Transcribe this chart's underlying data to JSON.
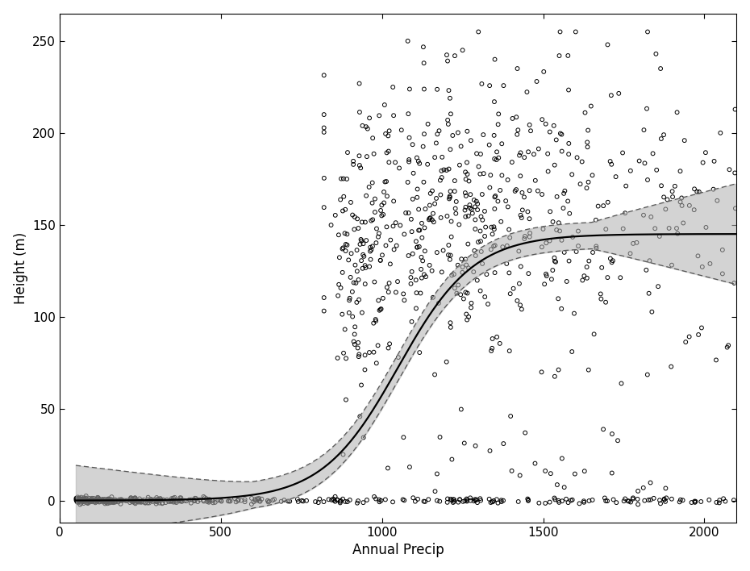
{
  "title": "",
  "xlabel": "Annual Precip",
  "ylabel": "Height (m)",
  "xlabel_color": "#000000",
  "ylabel_color": "#000000",
  "xlim": [
    50,
    2100
  ],
  "ylim": [
    -12,
    265
  ],
  "xticks": [
    0,
    500,
    1000,
    1500,
    2000
  ],
  "yticks": [
    0,
    50,
    100,
    150,
    200,
    250
  ],
  "background_color": "#ffffff",
  "point_facecolor": "none",
  "point_edgecolor": "#000000",
  "point_size": 12,
  "point_linewidth": 0.7,
  "curve_color": "#000000",
  "ci_fill_color": "#b0b0b0",
  "ci_fill_alpha": 0.55,
  "dashed_color": "#555555",
  "seed": 42,
  "sigmoid_L": 145,
  "sigmoid_k": 0.0085,
  "sigmoid_x0": 1050
}
